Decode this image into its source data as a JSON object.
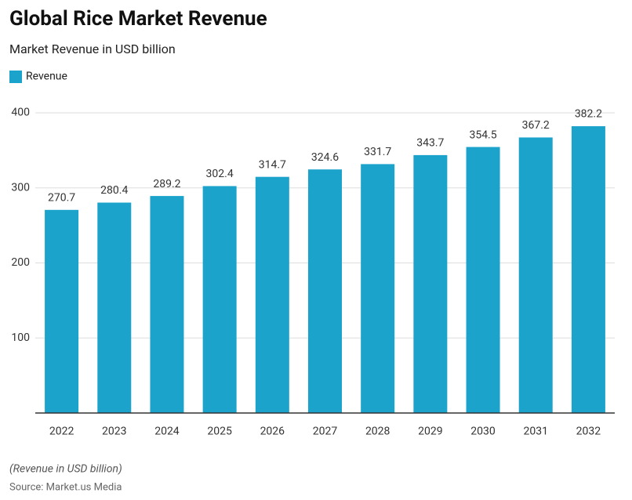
{
  "chart_data": {
    "type": "bar",
    "title": "Global Rice Market Revenue",
    "subtitle": "Market Revenue in USD billion",
    "categories": [
      "2022",
      "2023",
      "2024",
      "2025",
      "2026",
      "2027",
      "2028",
      "2029",
      "2030",
      "2031",
      "2032"
    ],
    "series": [
      {
        "name": "Revenue",
        "color": "#1ba3cc",
        "values": [
          270.7,
          280.4,
          289.2,
          302.4,
          314.7,
          324.6,
          331.7,
          343.7,
          354.5,
          367.2,
          382.2
        ]
      }
    ],
    "ylim": [
      0,
      400
    ],
    "yticks": [
      100,
      200,
      300,
      400
    ],
    "grid": true,
    "note": "(Revenue in USD billion)",
    "source": "Source: Market.us Media"
  }
}
